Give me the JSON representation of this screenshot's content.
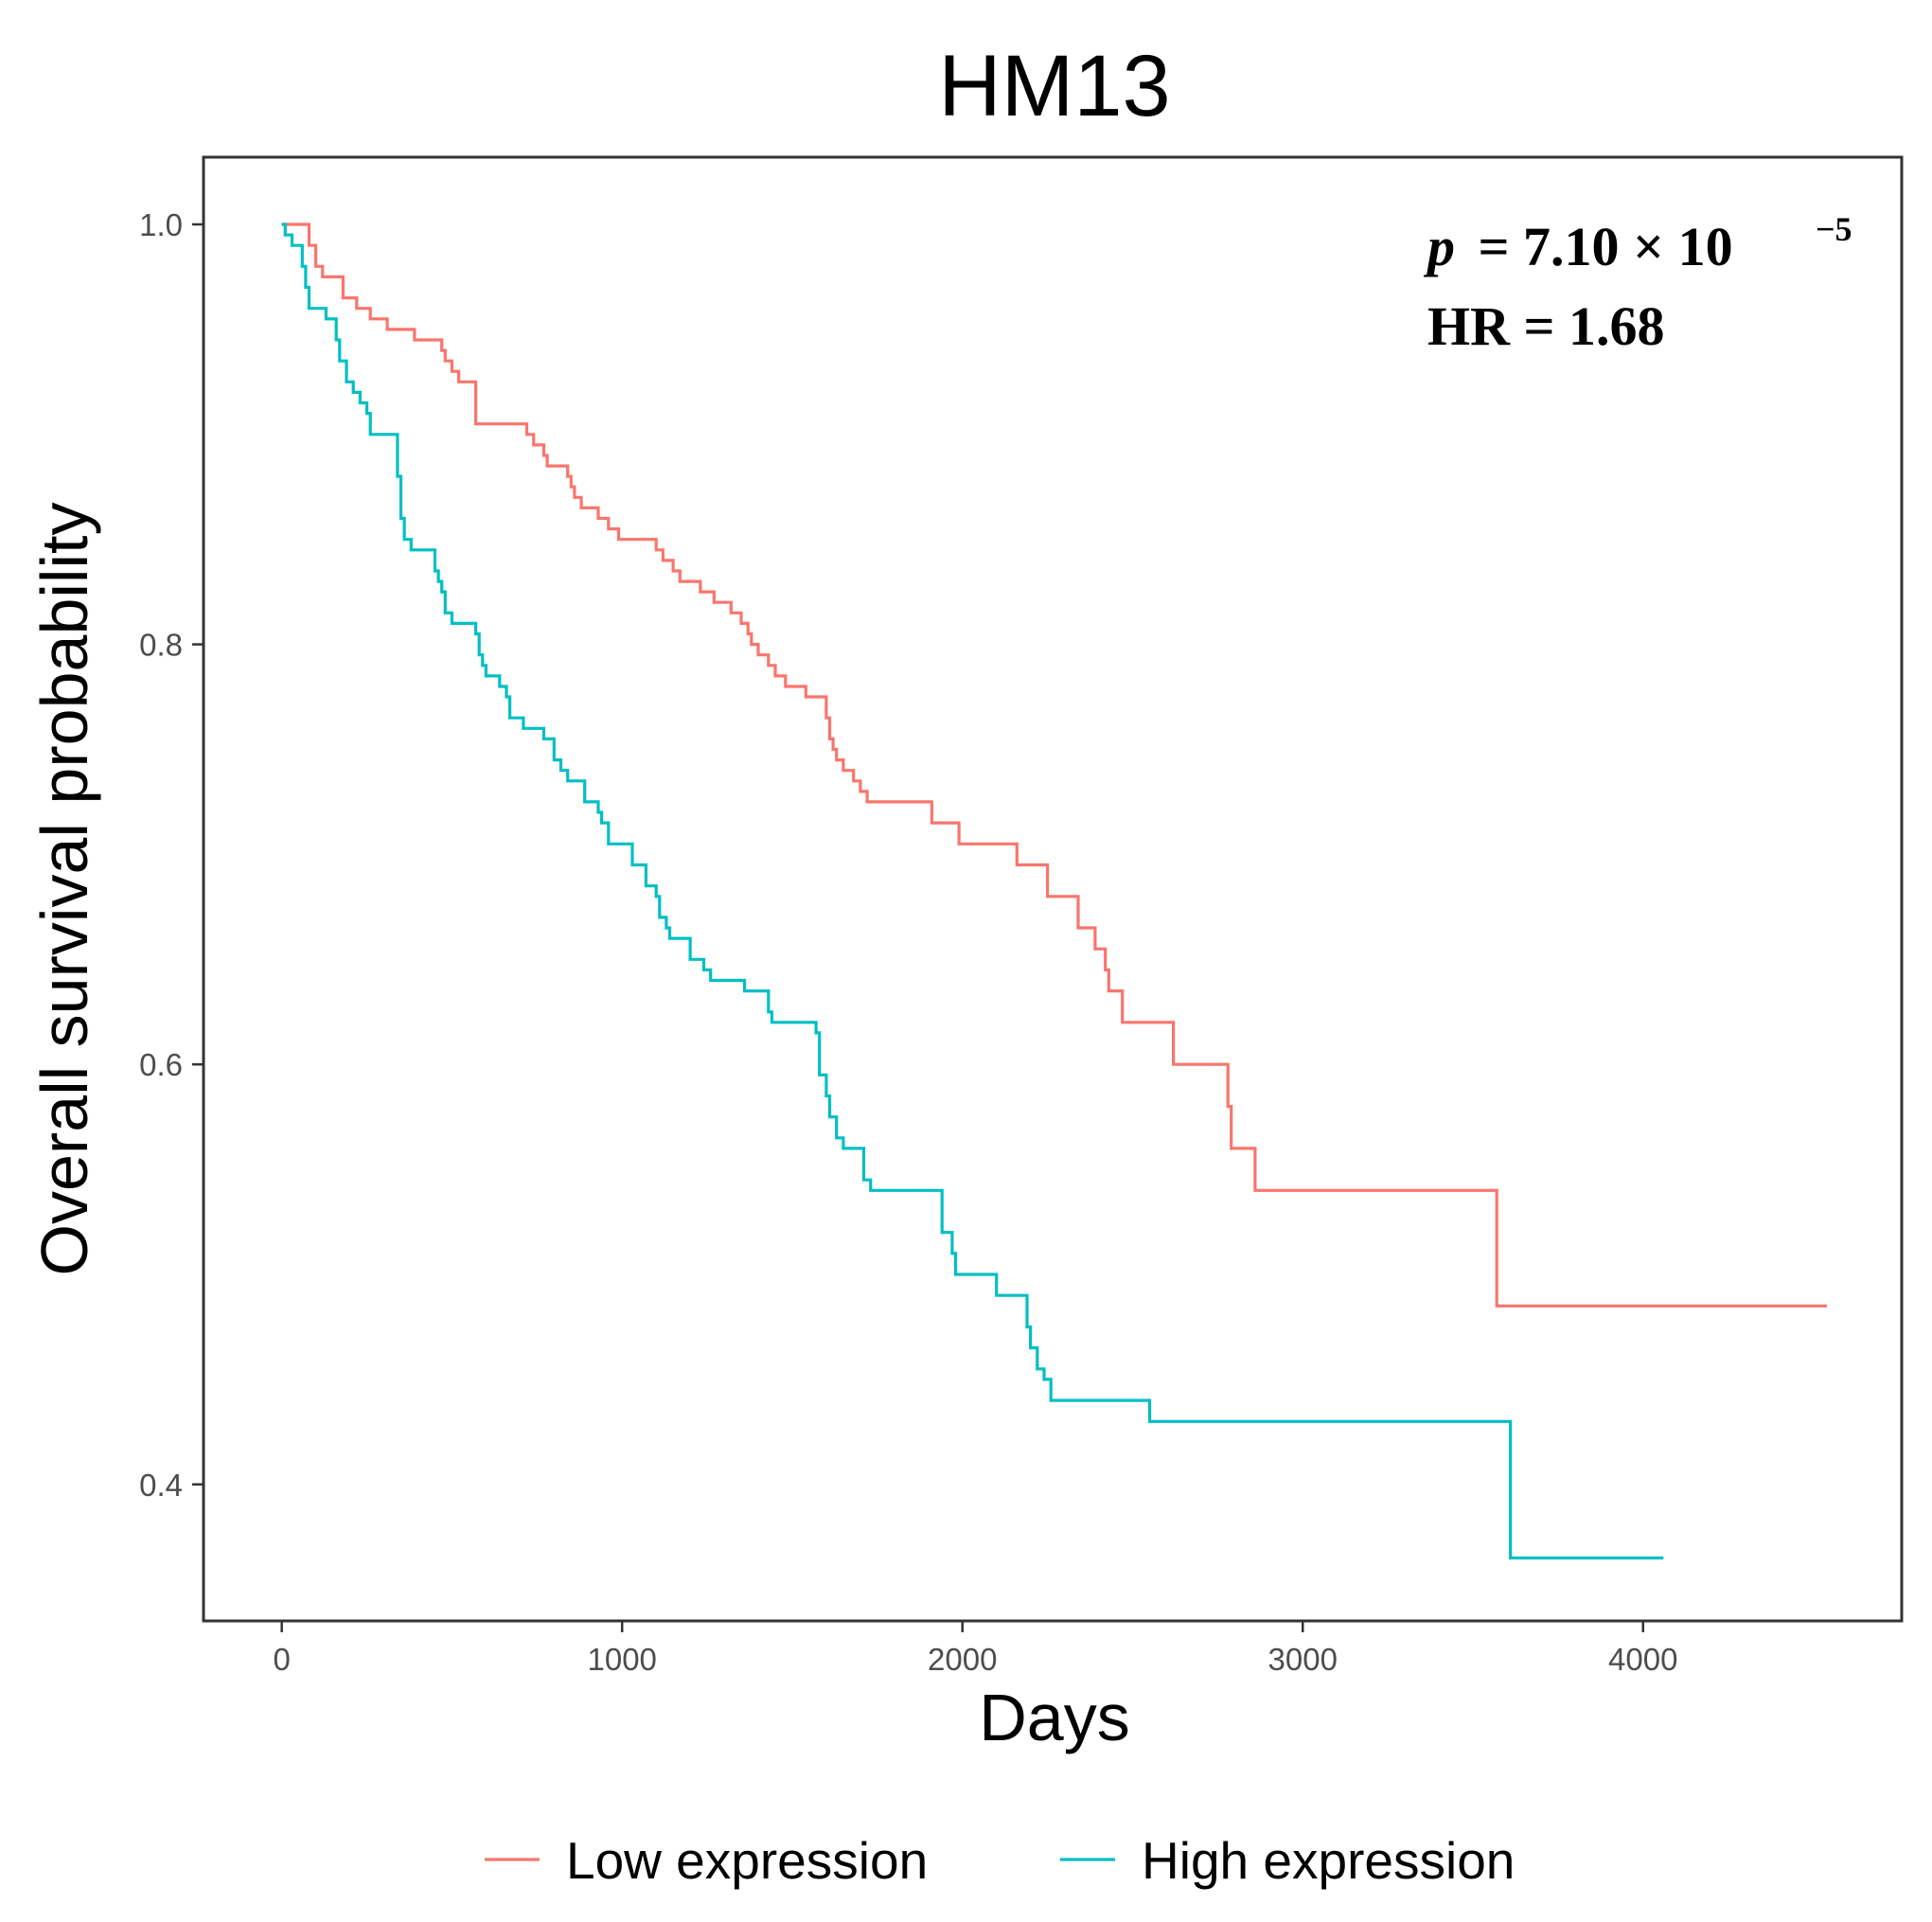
{
  "chart_data": {
    "type": "line",
    "subtype": "kaplan-meier step",
    "title": "HM13",
    "xlabel": "Days",
    "ylabel": "Overall survival probability",
    "xlim": [
      -230,
      4760
    ],
    "ylim": [
      0.335,
      1.032
    ],
    "x_ticks": [
      0,
      1000,
      2000,
      3000,
      4000
    ],
    "x_tick_labels": [
      "0",
      "1000",
      "2000",
      "3000",
      "4000"
    ],
    "y_ticks": [
      0.4,
      0.6,
      0.8,
      1.0
    ],
    "y_tick_labels": [
      "0.4",
      "0.6",
      "0.8",
      "1.0"
    ],
    "grid": false,
    "legend_position": "bottom",
    "annotation": {
      "p_symbol": "p",
      "p_value": "= 7.10 × 10",
      "p_exponent": "−5",
      "hr": "HR = 1.68"
    },
    "series": [
      {
        "name": "Low expression",
        "color": "#F8766D",
        "points": [
          [
            0,
            1.0
          ],
          [
            60,
            1.0
          ],
          [
            80,
            0.99
          ],
          [
            100,
            0.98
          ],
          [
            120,
            0.975
          ],
          [
            180,
            0.965
          ],
          [
            220,
            0.96
          ],
          [
            260,
            0.955
          ],
          [
            300,
            0.955
          ],
          [
            310,
            0.95
          ],
          [
            380,
            0.95
          ],
          [
            390,
            0.945
          ],
          [
            460,
            0.945
          ],
          [
            470,
            0.94
          ],
          [
            480,
            0.935
          ],
          [
            500,
            0.93
          ],
          [
            520,
            0.925
          ],
          [
            560,
            0.925
          ],
          [
            570,
            0.905
          ],
          [
            700,
            0.905
          ],
          [
            720,
            0.9
          ],
          [
            740,
            0.895
          ],
          [
            770,
            0.89
          ],
          [
            780,
            0.885
          ],
          [
            830,
            0.885
          ],
          [
            840,
            0.88
          ],
          [
            850,
            0.875
          ],
          [
            860,
            0.87
          ],
          [
            880,
            0.865
          ],
          [
            920,
            0.865
          ],
          [
            930,
            0.86
          ],
          [
            960,
            0.855
          ],
          [
            990,
            0.85
          ],
          [
            1090,
            0.85
          ],
          [
            1100,
            0.845
          ],
          [
            1120,
            0.84
          ],
          [
            1150,
            0.835
          ],
          [
            1170,
            0.83
          ],
          [
            1220,
            0.83
          ],
          [
            1230,
            0.825
          ],
          [
            1270,
            0.82
          ],
          [
            1300,
            0.82
          ],
          [
            1320,
            0.815
          ],
          [
            1350,
            0.81
          ],
          [
            1370,
            0.805
          ],
          [
            1380,
            0.8
          ],
          [
            1400,
            0.795
          ],
          [
            1430,
            0.79
          ],
          [
            1450,
            0.785
          ],
          [
            1480,
            0.78
          ],
          [
            1530,
            0.78
          ],
          [
            1540,
            0.775
          ],
          [
            1590,
            0.775
          ],
          [
            1600,
            0.765
          ],
          [
            1610,
            0.755
          ],
          [
            1620,
            0.75
          ],
          [
            1630,
            0.745
          ],
          [
            1650,
            0.74
          ],
          [
            1680,
            0.735
          ],
          [
            1700,
            0.73
          ],
          [
            1720,
            0.725
          ],
          [
            1900,
            0.725
          ],
          [
            1910,
            0.715
          ],
          [
            1980,
            0.715
          ],
          [
            1990,
            0.705
          ],
          [
            2150,
            0.705
          ],
          [
            2160,
            0.695
          ],
          [
            2240,
            0.695
          ],
          [
            2250,
            0.68
          ],
          [
            2330,
            0.68
          ],
          [
            2340,
            0.665
          ],
          [
            2380,
            0.665
          ],
          [
            2390,
            0.655
          ],
          [
            2420,
            0.645
          ],
          [
            2430,
            0.635
          ],
          [
            2460,
            0.635
          ],
          [
            2470,
            0.62
          ],
          [
            2610,
            0.62
          ],
          [
            2620,
            0.6
          ],
          [
            2770,
            0.6
          ],
          [
            2780,
            0.58
          ],
          [
            2790,
            0.56
          ],
          [
            2850,
            0.56
          ],
          [
            2860,
            0.54
          ],
          [
            3560,
            0.54
          ],
          [
            3570,
            0.485
          ],
          [
            4540,
            0.485
          ]
        ]
      },
      {
        "name": "High expression",
        "color": "#00BFC4",
        "points": [
          [
            0,
            1.0
          ],
          [
            10,
            0.995
          ],
          [
            30,
            0.99
          ],
          [
            60,
            0.98
          ],
          [
            70,
            0.97
          ],
          [
            80,
            0.96
          ],
          [
            110,
            0.96
          ],
          [
            130,
            0.955
          ],
          [
            160,
            0.945
          ],
          [
            170,
            0.935
          ],
          [
            190,
            0.925
          ],
          [
            210,
            0.92
          ],
          [
            230,
            0.915
          ],
          [
            250,
            0.91
          ],
          [
            260,
            0.9
          ],
          [
            330,
            0.9
          ],
          [
            340,
            0.88
          ],
          [
            350,
            0.86
          ],
          [
            360,
            0.85
          ],
          [
            380,
            0.845
          ],
          [
            440,
            0.845
          ],
          [
            450,
            0.835
          ],
          [
            460,
            0.83
          ],
          [
            470,
            0.825
          ],
          [
            480,
            0.815
          ],
          [
            500,
            0.81
          ],
          [
            560,
            0.81
          ],
          [
            570,
            0.805
          ],
          [
            580,
            0.795
          ],
          [
            590,
            0.79
          ],
          [
            600,
            0.785
          ],
          [
            630,
            0.785
          ],
          [
            640,
            0.78
          ],
          [
            660,
            0.775
          ],
          [
            670,
            0.765
          ],
          [
            700,
            0.765
          ],
          [
            710,
            0.76
          ],
          [
            760,
            0.76
          ],
          [
            770,
            0.755
          ],
          [
            800,
            0.745
          ],
          [
            820,
            0.74
          ],
          [
            840,
            0.735
          ],
          [
            880,
            0.735
          ],
          [
            890,
            0.725
          ],
          [
            930,
            0.72
          ],
          [
            940,
            0.715
          ],
          [
            960,
            0.705
          ],
          [
            1020,
            0.705
          ],
          [
            1030,
            0.695
          ],
          [
            1070,
            0.685
          ],
          [
            1100,
            0.68
          ],
          [
            1110,
            0.67
          ],
          [
            1130,
            0.665
          ],
          [
            1140,
            0.66
          ],
          [
            1190,
            0.66
          ],
          [
            1200,
            0.65
          ],
          [
            1240,
            0.645
          ],
          [
            1260,
            0.64
          ],
          [
            1350,
            0.64
          ],
          [
            1360,
            0.635
          ],
          [
            1420,
            0.635
          ],
          [
            1430,
            0.625
          ],
          [
            1440,
            0.62
          ],
          [
            1560,
            0.62
          ],
          [
            1570,
            0.615
          ],
          [
            1580,
            0.595
          ],
          [
            1600,
            0.585
          ],
          [
            1610,
            0.575
          ],
          [
            1630,
            0.565
          ],
          [
            1650,
            0.56
          ],
          [
            1700,
            0.56
          ],
          [
            1710,
            0.545
          ],
          [
            1730,
            0.54
          ],
          [
            1930,
            0.54
          ],
          [
            1940,
            0.52
          ],
          [
            1970,
            0.51
          ],
          [
            1980,
            0.5
          ],
          [
            2090,
            0.5
          ],
          [
            2100,
            0.49
          ],
          [
            2180,
            0.49
          ],
          [
            2190,
            0.475
          ],
          [
            2200,
            0.465
          ],
          [
            2220,
            0.455
          ],
          [
            2240,
            0.45
          ],
          [
            2260,
            0.44
          ],
          [
            2540,
            0.44
          ],
          [
            2550,
            0.43
          ],
          [
            3600,
            0.43
          ],
          [
            3610,
            0.365
          ],
          [
            4060,
            0.365
          ]
        ]
      }
    ]
  }
}
